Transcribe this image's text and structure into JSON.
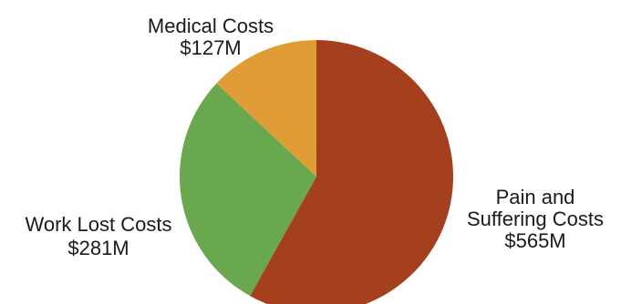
{
  "chart_data": {
    "type": "pie",
    "title": "",
    "slices": [
      {
        "label_lines": [
          "Pain and",
          "Suffering Costs"
        ],
        "value_text": "$565M",
        "value": 565,
        "color": "#a5401f"
      },
      {
        "label_lines": [
          "Work Lost Costs"
        ],
        "value_text": "$281M",
        "value": 281,
        "color": "#6aa84f"
      },
      {
        "label_lines": [
          "Medical Costs"
        ],
        "value_text": "$127M",
        "value": 127,
        "color": "#e09c36"
      }
    ],
    "start_angle_deg": 0,
    "direction": "clockwise",
    "legend": "none"
  }
}
